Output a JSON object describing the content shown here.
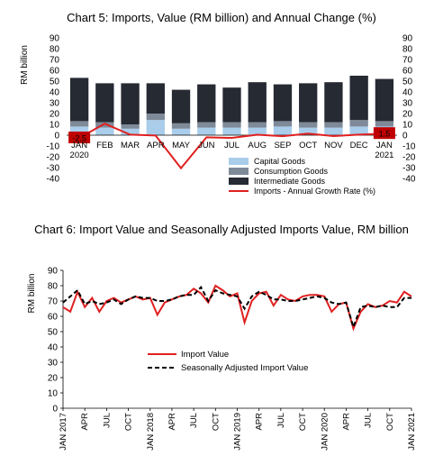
{
  "chart_data": [
    {
      "type": "bar",
      "title": "Chart 5: Imports, Value (RM billion) and Annual Change (%)",
      "ylabel": "RM billion",
      "ylim": [
        -40,
        90
      ],
      "yticks": [
        -40,
        -30,
        -20,
        -10,
        0,
        10,
        20,
        30,
        40,
        50,
        60,
        70,
        80,
        90
      ],
      "stacked": true,
      "categories": [
        [
          "JAN",
          "2020"
        ],
        [
          "FEB"
        ],
        [
          "MAR"
        ],
        [
          "APR"
        ],
        [
          "MAY"
        ],
        [
          "JUN"
        ],
        [
          "JUL"
        ],
        [
          "AUG"
        ],
        [
          "SEP"
        ],
        [
          "OCT"
        ],
        [
          "NOV"
        ],
        [
          "DEC"
        ],
        [
          "JAN",
          "2021"
        ]
      ],
      "series": [
        {
          "name": "Capital Goods",
          "type": "bar",
          "color": "#a9cdea",
          "values": [
            8,
            7,
            6,
            14,
            6,
            7,
            7,
            7,
            8,
            7,
            7,
            8,
            8
          ]
        },
        {
          "name": "Consumption Goods",
          "type": "bar",
          "color": "#7f8a99",
          "values": [
            5,
            5,
            4,
            6,
            5,
            5,
            5,
            5,
            5,
            5,
            5,
            6,
            5
          ]
        },
        {
          "name": "Intermediate Goods",
          "type": "bar",
          "color": "#262a33",
          "values": [
            40,
            36,
            38,
            28,
            31,
            35,
            32,
            37,
            34,
            36,
            37,
            41,
            39
          ]
        },
        {
          "name": "Imports - Annual Growth Rate (%)",
          "type": "line",
          "color": "#e02020",
          "values": [
            -2.5,
            10.7,
            0.5,
            -0.3,
            -30.5,
            -2,
            -2.5,
            0.4,
            -0.9,
            1.5,
            -0.8,
            0.5,
            1.5
          ]
        }
      ],
      "labels": {
        "first": "-2.5",
        "last": "1.5"
      },
      "legend_position": "bottom-right"
    },
    {
      "type": "line",
      "title": "Chart 6: Import Value and Seasonally Adjusted Imports Value, RM billion",
      "ylabel": "RM billion",
      "ylim": [
        0,
        90
      ],
      "yticks": [
        0,
        10,
        20,
        30,
        40,
        50,
        60,
        70,
        80,
        90
      ],
      "x": [
        "2017-01",
        "2017-02",
        "2017-03",
        "2017-04",
        "2017-05",
        "2017-06",
        "2017-07",
        "2017-08",
        "2017-09",
        "2017-10",
        "2017-11",
        "2017-12",
        "2018-01",
        "2018-02",
        "2018-03",
        "2018-04",
        "2018-05",
        "2018-06",
        "2018-07",
        "2018-08",
        "2018-09",
        "2018-10",
        "2018-11",
        "2018-12",
        "2019-01",
        "2019-02",
        "2019-03",
        "2019-04",
        "2019-05",
        "2019-06",
        "2019-07",
        "2019-08",
        "2019-09",
        "2019-10",
        "2019-11",
        "2019-12",
        "2020-01",
        "2020-02",
        "2020-03",
        "2020-04",
        "2020-05",
        "2020-06",
        "2020-07",
        "2020-08",
        "2020-09",
        "2020-10",
        "2020-11",
        "2020-12",
        "2021-01"
      ],
      "xticklabels": [
        "JAN 2017",
        "APR",
        "JUL",
        "OCT",
        "JAN 2018",
        "APR",
        "JUL",
        "OCT",
        "JAN 2019",
        "APR",
        "JUL",
        "OCT",
        "JAN 2020",
        "APR",
        "JUL",
        "OCT",
        "JAN 2021"
      ],
      "series": [
        {
          "name": "Import Value",
          "color": "#e02020",
          "dash": "solid",
          "values": [
            66,
            63,
            76,
            66,
            72,
            63,
            70,
            72,
            69,
            71,
            73,
            71,
            72,
            61,
            69,
            71,
            73,
            74,
            78,
            75,
            69,
            80,
            77,
            73,
            75,
            56,
            70,
            75,
            76,
            67,
            74,
            71,
            70,
            73,
            74,
            74,
            73,
            63,
            68,
            69,
            52,
            63,
            68,
            66,
            67,
            70,
            69,
            76,
            73
          ]
        },
        {
          "name": "Seasonally Adjusted Import Value",
          "color": "#000000",
          "dash": "dashed",
          "values": [
            69,
            73,
            77,
            68,
            70,
            68,
            69,
            71,
            68,
            71,
            73,
            72,
            72,
            70,
            70,
            71,
            73,
            74,
            74,
            79,
            70,
            77,
            75,
            74,
            73,
            65,
            73,
            76,
            74,
            71,
            71,
            70,
            70,
            71,
            72,
            73,
            72,
            69,
            68,
            69,
            53,
            66,
            67,
            66,
            67,
            66,
            66,
            72,
            72
          ]
        }
      ],
      "legend_position": "bottom-center"
    }
  ]
}
